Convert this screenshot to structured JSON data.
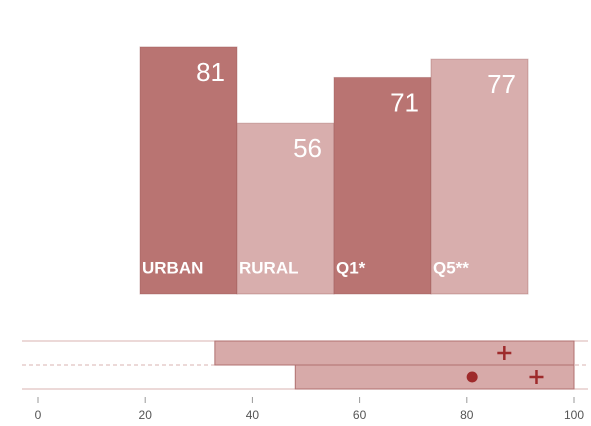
{
  "chart_data": [
    {
      "type": "bar",
      "categories": [
        "URBAN",
        "RURAL",
        "Q1*",
        "Q5**"
      ],
      "values": [
        81,
        56,
        71,
        77
      ],
      "colors": [
        "#b97472",
        "#d8aead",
        "#b97472",
        "#d8aead"
      ],
      "ylim": [
        0,
        100
      ]
    },
    {
      "type": "range",
      "xlim": [
        0,
        100
      ],
      "xticks": [
        0,
        20,
        40,
        60,
        80,
        100
      ],
      "color": "#c98e8c",
      "marker_color": "#9e2a2b",
      "rows": [
        {
          "start": 33,
          "end": 100,
          "plus": 87
        },
        {
          "start": 48,
          "end": 100,
          "dot": 81,
          "plus": 93
        }
      ]
    }
  ]
}
